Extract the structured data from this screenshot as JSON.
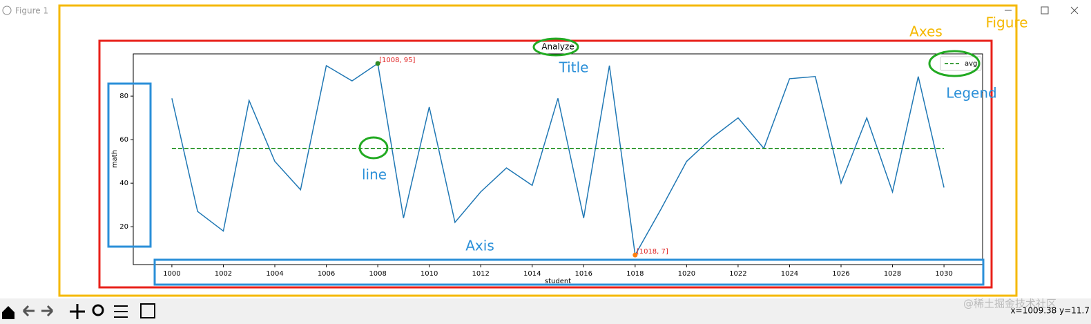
{
  "window": {
    "title": "Figure 1",
    "status": "x=1009.38 y=11.7",
    "watermark": "@稀土掘金技术社区"
  },
  "overlay_labels": {
    "figure": "Figure",
    "axes": "Axes",
    "title": "Title",
    "legend": "Legend",
    "line": "line",
    "axis": "Axis"
  },
  "chart_data": {
    "type": "line",
    "title": "Analyze",
    "x_label": "student",
    "y_label": "math",
    "x": [
      1000,
      1001,
      1002,
      1003,
      1004,
      1005,
      1006,
      1007,
      1008,
      1009,
      1010,
      1011,
      1012,
      1013,
      1014,
      1015,
      1016,
      1017,
      1018,
      1019,
      1020,
      1021,
      1022,
      1023,
      1024,
      1025,
      1026,
      1027,
      1028,
      1029,
      1030
    ],
    "series": [
      {
        "name": null,
        "color": "#1f77b4",
        "style": "solid",
        "values": [
          79,
          27,
          18,
          78,
          50,
          37,
          94,
          87,
          95,
          24,
          75,
          22,
          36,
          47,
          39,
          79,
          24,
          94,
          7,
          28,
          50,
          61,
          70,
          56,
          88,
          89,
          40,
          70,
          36,
          89,
          38
        ]
      },
      {
        "name": "avg",
        "color": "#008000",
        "style": "dashed",
        "values": [
          56,
          56,
          56,
          56,
          56,
          56,
          56,
          56,
          56,
          56,
          56,
          56,
          56,
          56,
          56,
          56,
          56,
          56,
          56,
          56,
          56,
          56,
          56,
          56,
          56,
          56,
          56,
          56,
          56,
          56,
          56
        ]
      }
    ],
    "annotations": [
      {
        "text": "[1008, 95]",
        "x": 1008,
        "y": 95,
        "color": "#2e8b22"
      },
      {
        "text": "[1018, 7]",
        "x": 1018,
        "y": 7,
        "color": "#ff7f0e"
      }
    ],
    "xlim": [
      998.5,
      1031.5
    ],
    "ylim": [
      2.6,
      99.4
    ],
    "xticks": [
      1000,
      1002,
      1004,
      1006,
      1008,
      1010,
      1012,
      1014,
      1016,
      1018,
      1020,
      1022,
      1024,
      1026,
      1028,
      1030
    ],
    "yticks": [
      20,
      40,
      60,
      80
    ],
    "legend": "upper right"
  }
}
